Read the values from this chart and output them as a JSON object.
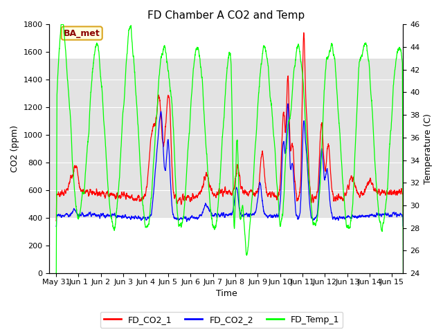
{
  "title": "FD Chamber A CO2 and Temp",
  "xlabel": "Time",
  "ylabel_left": "CO2 (ppm)",
  "ylabel_right": "Temperature (C)",
  "ylim_left": [
    0,
    1800
  ],
  "ylim_right": [
    24,
    46
  ],
  "xlim": [
    -0.3,
    15.5
  ],
  "xtick_positions": [
    0,
    1,
    2,
    3,
    4,
    5,
    6,
    7,
    8,
    9,
    10,
    11,
    12,
    13,
    14,
    15
  ],
  "xtick_labels": [
    "May 31",
    "Jun 1",
    "Jun 2",
    "Jun 3",
    "Jun 4",
    "Jun 5",
    "Jun 6",
    "Jun 7",
    "Jun 8",
    "Jun 9",
    "Jun 10",
    "Jun 11",
    "Jun 12",
    "Jun 13",
    "Jun 14",
    "Jun 15"
  ],
  "ytick_left": [
    0,
    200,
    400,
    600,
    800,
    1000,
    1200,
    1400,
    1600,
    1800
  ],
  "ytick_right": [
    24,
    26,
    28,
    30,
    32,
    34,
    36,
    38,
    40,
    42,
    44,
    46
  ],
  "gray_band": [
    400,
    1550
  ],
  "legend_labels": [
    "FD_CO2_1",
    "FD_CO2_2",
    "FD_Temp_1"
  ],
  "legend_colors": [
    "red",
    "blue",
    "lime"
  ],
  "ba_met_label": "BA_met",
  "title_fontsize": 11,
  "axis_label_fontsize": 9,
  "tick_fontsize": 8
}
